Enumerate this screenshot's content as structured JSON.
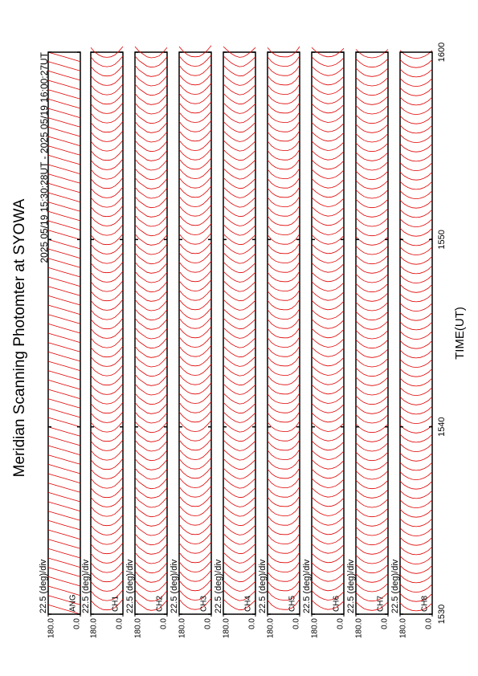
{
  "chart_data": {
    "type": "line",
    "title": "Meridian Scanning Photomter at SYOWA",
    "subtitle": "2025 05/19 15:30:28UT - 2025 05/19 16:00:27UT",
    "xlabel": "TIME(UT)",
    "xlim": [
      30,
      60
    ],
    "xticks": [
      {
        "value": 30,
        "label": "1530"
      },
      {
        "value": 40,
        "label": "1540"
      },
      {
        "value": 50,
        "label": "1550"
      },
      {
        "value": 60,
        "label": "1600"
      }
    ],
    "ylim": [
      0,
      180
    ],
    "yticks": [
      {
        "value": 180,
        "label": "180.0"
      },
      {
        "value": 0,
        "label": "0.0"
      }
    ],
    "scale_label": "22.5 (deg)/div",
    "color": "#e00000",
    "angles": [
      0,
      22.5,
      45,
      67.5,
      90,
      112.5,
      135,
      157.5,
      180
    ],
    "scan_times": [
      30,
      30.5,
      31,
      31.5,
      32,
      32.5,
      33,
      33.5,
      34,
      34.5,
      35,
      35.5,
      36,
      36.5,
      37,
      37.5,
      38,
      38.5,
      39,
      39.5,
      40,
      40.5,
      41,
      41.5,
      42,
      42.5,
      43,
      43.5,
      44,
      44.5,
      45,
      45.5,
      46,
      46.5,
      47,
      47.5,
      48,
      48.5,
      49,
      49.5,
      50,
      50.5,
      51,
      51.5,
      52,
      52.5,
      53,
      53.5,
      54,
      54.5,
      55,
      55.5,
      56,
      56.5,
      57,
      57.5,
      58,
      58.5,
      59,
      59.5
    ],
    "panels": [
      {
        "name": "ANG",
        "values": [
          0,
          0.125,
          0.25,
          0.375,
          0.5,
          0.625,
          0.75,
          0.875,
          1
        ]
      },
      {
        "name": "CH1",
        "values": [
          1.6,
          1.1,
          0.7,
          0.5,
          0.45,
          0.5,
          0.7,
          1.0,
          1.5
        ]
      },
      {
        "name": "CH2",
        "values": [
          1.5,
          1.0,
          0.6,
          0.45,
          0.4,
          0.5,
          0.8,
          1.1,
          1.6
        ]
      },
      {
        "name": "CH3",
        "values": [
          1.7,
          1.2,
          0.8,
          0.55,
          0.5,
          0.55,
          0.75,
          1.1,
          1.6
        ]
      },
      {
        "name": "CH4",
        "values": [
          1.5,
          1.1,
          0.75,
          0.5,
          0.45,
          0.6,
          0.85,
          1.2,
          1.6
        ]
      },
      {
        "name": "CH5",
        "values": [
          1.6,
          1.0,
          0.65,
          0.5,
          0.5,
          0.55,
          0.7,
          1.0,
          1.5
        ]
      },
      {
        "name": "CH6",
        "values": [
          1.4,
          1.0,
          0.7,
          0.55,
          0.5,
          0.6,
          0.8,
          1.1,
          1.5
        ]
      },
      {
        "name": "CH7",
        "values": [
          1.3,
          0.9,
          0.6,
          0.45,
          0.4,
          0.45,
          0.6,
          0.9,
          1.3
        ]
      },
      {
        "name": "CH8",
        "values": [
          1.2,
          0.8,
          0.55,
          0.4,
          0.35,
          0.4,
          0.55,
          0.8,
          1.2
        ]
      }
    ]
  }
}
